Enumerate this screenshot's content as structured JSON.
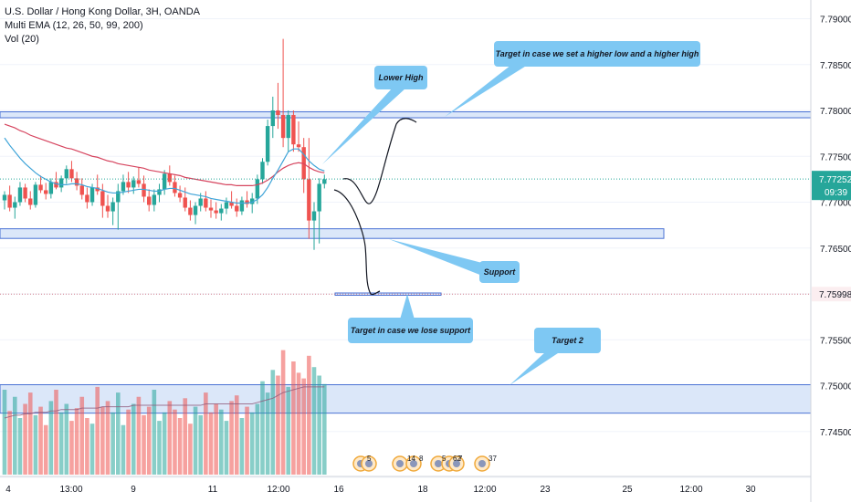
{
  "legend": {
    "title": "U.S. Dollar / Hong Kong Dollar, 3H, OANDA",
    "indicator": "Multi EMA (12, 26, 50, 99, 200)",
    "volume": "Vol (20)"
  },
  "price_axis": {
    "ticks": [
      "7.79000",
      "7.78500",
      "7.78000",
      "7.77500",
      "7.77000",
      "7.76500",
      "7.75998",
      "7.75500",
      "7.75000",
      "7.74500"
    ],
    "current_price": "7.77252",
    "countdown": "09:39",
    "marked_price": "7.75998"
  },
  "time_axis": {
    "ticks": [
      "4",
      "13:00",
      "9",
      "11",
      "12:00",
      "16",
      "18",
      "12:00",
      "23",
      "25",
      "12:00",
      "30"
    ]
  },
  "callouts": [
    "Lower High",
    "Target in case we set a higher low and a higher high",
    "Support",
    "Target in case we lose support",
    "Target 2"
  ],
  "event_badges": [
    "5",
    "14",
    "8",
    "5",
    "62",
    "7",
    "37"
  ],
  "colors": {
    "up": "#26a69a",
    "down": "#ef5350",
    "zone_fill": "#dbe7f9",
    "zone_line": "#4a72d4",
    "callout": "#7ec8f3",
    "ema_red": "#d6455f",
    "ema_blue": "#3fa4d8"
  },
  "chart_data": {
    "type": "candlestick",
    "symbol": "USD/HKD",
    "interval": "3H",
    "ylim": [
      7.7405,
      7.7925
    ],
    "candles": [
      [
        7.7702,
        7.7712,
        7.7692,
        7.7708
      ],
      [
        7.7708,
        7.7718,
        7.769,
        7.7694
      ],
      [
        7.7694,
        7.7706,
        7.7682,
        7.77
      ],
      [
        7.77,
        7.7722,
        7.7696,
        7.7716
      ],
      [
        7.7716,
        7.772,
        7.77,
        7.7704
      ],
      [
        7.7704,
        7.7712,
        7.7692,
        7.7697
      ],
      [
        7.7697,
        7.7722,
        7.7694,
        7.7719
      ],
      [
        7.7719,
        7.7729,
        7.771,
        7.7713
      ],
      [
        7.7713,
        7.7721,
        7.7703,
        7.7709
      ],
      [
        7.7709,
        7.7726,
        7.7704,
        7.7722
      ],
      [
        7.7722,
        7.7733,
        7.7714,
        7.7716
      ],
      [
        7.7716,
        7.7729,
        7.7711,
        7.7726
      ],
      [
        7.7726,
        7.774,
        7.772,
        7.7736
      ],
      [
        7.7736,
        7.7745,
        7.7722,
        7.7726
      ],
      [
        7.7726,
        7.7733,
        7.7713,
        7.7718
      ],
      [
        7.7718,
        7.7726,
        7.7703,
        7.7708
      ],
      [
        7.7708,
        7.7716,
        7.7693,
        7.77
      ],
      [
        7.77,
        7.772,
        7.7696,
        7.7716
      ],
      [
        7.7716,
        7.773,
        7.7708,
        7.7712
      ],
      [
        7.7712,
        7.772,
        7.7683,
        7.7696
      ],
      [
        7.7696,
        7.7708,
        7.7683,
        7.769
      ],
      [
        7.769,
        7.7705,
        7.7675,
        7.77
      ],
      [
        7.77,
        7.772,
        7.767,
        7.7712
      ],
      [
        7.7712,
        7.773,
        7.7708,
        7.7722
      ],
      [
        7.7722,
        7.7733,
        7.771,
        7.7716
      ],
      [
        7.7716,
        7.7728,
        7.7709,
        7.7724
      ],
      [
        7.7724,
        7.7738,
        7.7716,
        7.772
      ],
      [
        7.772,
        7.7729,
        7.77,
        7.7706
      ],
      [
        7.7706,
        7.7714,
        7.769,
        7.7697
      ],
      [
        7.7697,
        7.7714,
        7.769,
        7.7708
      ],
      [
        7.7708,
        7.772,
        7.77,
        7.7714
      ],
      [
        7.7714,
        7.7735,
        7.7708,
        7.7731
      ],
      [
        7.7731,
        7.774,
        7.7718,
        7.7722
      ],
      [
        7.7722,
        7.7729,
        7.7706,
        7.771
      ],
      [
        7.771,
        7.7718,
        7.77,
        7.7705
      ],
      [
        7.7705,
        7.7716,
        7.769,
        7.7694
      ],
      [
        7.7694,
        7.7702,
        7.768,
        7.7686
      ],
      [
        7.7686,
        7.77,
        7.7676,
        7.7696
      ],
      [
        7.7696,
        7.771,
        7.769,
        7.7704
      ],
      [
        7.7704,
        7.7712,
        7.769,
        7.7694
      ],
      [
        7.7694,
        7.7703,
        7.7683,
        7.7691
      ],
      [
        7.7691,
        7.77,
        7.7682,
        7.7688
      ],
      [
        7.7688,
        7.7698,
        7.768,
        7.7693
      ],
      [
        7.7693,
        7.7705,
        7.7687,
        7.77
      ],
      [
        7.77,
        7.7712,
        7.7693,
        7.7696
      ],
      [
        7.7696,
        7.7704,
        7.7684,
        7.769
      ],
      [
        7.769,
        7.7706,
        7.7686,
        7.7702
      ],
      [
        7.7702,
        7.7712,
        7.7694,
        7.7698
      ],
      [
        7.7698,
        7.771,
        7.7688,
        7.7704
      ],
      [
        7.7704,
        7.773,
        7.7698,
        7.7725
      ],
      [
        7.7725,
        7.7748,
        7.772,
        7.7744
      ],
      [
        7.7744,
        7.779,
        7.774,
        7.7783
      ],
      [
        7.7783,
        7.7815,
        7.777,
        7.78
      ],
      [
        7.78,
        7.783,
        7.778,
        7.7795
      ],
      [
        7.7795,
        7.7878,
        7.776,
        7.777
      ],
      [
        7.777,
        7.78,
        7.7755,
        7.7795
      ],
      [
        7.7795,
        7.78,
        7.7755,
        7.7763
      ],
      [
        7.7763,
        7.7788,
        7.7755,
        7.776
      ],
      [
        7.776,
        7.777,
        7.771,
        7.7725
      ],
      [
        7.7725,
        7.777,
        7.766,
        7.768
      ],
      [
        7.768,
        7.77,
        7.7648,
        7.769
      ],
      [
        7.769,
        7.7726,
        7.7655,
        7.772
      ],
      [
        7.772,
        7.773,
        7.7715,
        7.7725
      ]
    ],
    "ema": [
      {
        "name": "EMA red",
        "values": [
          7.7785,
          7.7783,
          7.7781,
          7.7778,
          7.7776,
          7.7773,
          7.7771,
          7.7769,
          7.7767,
          7.7765,
          7.7763,
          7.7761,
          7.7759,
          7.7758,
          7.7756,
          7.7754,
          7.7752,
          7.775,
          7.7749,
          7.7747,
          7.7745,
          7.7744,
          7.7742,
          7.7741,
          7.774,
          7.7739,
          7.7738,
          7.7737,
          7.7735,
          7.7734,
          7.7733,
          7.7732,
          7.7731,
          7.773,
          7.7729,
          7.7727,
          7.7726,
          7.7725,
          7.7724,
          7.7723,
          7.7722,
          7.7721,
          7.772,
          7.7719,
          7.7719,
          7.7718,
          7.7718,
          7.7718,
          7.7718,
          7.7719,
          7.7721,
          7.7724,
          7.7728,
          7.7733,
          7.7737,
          7.774,
          7.7742,
          7.7743,
          7.7742,
          7.7738,
          7.7735,
          7.7733,
          7.7732
        ]
      },
      {
        "name": "EMA blue",
        "values": [
          7.777,
          7.7762,
          7.7755,
          7.7748,
          7.7742,
          7.7737,
          7.7732,
          7.7728,
          7.7725,
          7.7722,
          7.772,
          7.7719,
          7.7719,
          7.772,
          7.772,
          7.7719,
          7.7717,
          7.7716,
          7.7715,
          7.7713,
          7.7711,
          7.771,
          7.771,
          7.7711,
          7.7712,
          7.7713,
          7.7714,
          7.7714,
          7.7713,
          7.7712,
          7.7712,
          7.7714,
          7.7715,
          7.7715,
          7.7713,
          7.7711,
          7.7709,
          7.7708,
          7.7707,
          7.7706,
          7.7704,
          7.7703,
          7.7702,
          7.7701,
          7.77,
          7.7699,
          7.7699,
          7.7699,
          7.77,
          7.7703,
          7.7708,
          7.7716,
          7.7726,
          7.7735,
          7.7745,
          7.7755,
          7.7758,
          7.7758,
          7.7752,
          7.7745,
          7.774,
          7.7736,
          7.7734
        ]
      }
    ],
    "volume": [
      60,
      45,
      55,
      40,
      50,
      58,
      42,
      48,
      35,
      52,
      60,
      44,
      50,
      38,
      47,
      55,
      40,
      36,
      62,
      48,
      52,
      44,
      58,
      35,
      46,
      50,
      55,
      42,
      48,
      60,
      38,
      44,
      52,
      46,
      40,
      54,
      36,
      48,
      42,
      58,
      44,
      50,
      46,
      38,
      52,
      56,
      40,
      48,
      44,
      50,
      66,
      58,
      74,
      70,
      88,
      62,
      80,
      72,
      68,
      84,
      76,
      70,
      64
    ],
    "volume_ma": [
      40,
      41,
      42,
      42,
      43,
      43,
      44,
      44,
      44,
      45,
      45,
      46,
      46,
      46,
      46,
      47,
      47,
      47,
      47,
      48,
      48,
      48,
      48,
      48,
      48,
      49,
      49,
      49,
      49,
      49,
      49,
      49,
      49,
      49,
      49,
      49,
      49,
      49,
      49,
      50,
      50,
      50,
      50,
      50,
      50,
      50,
      50,
      50,
      50,
      51,
      52,
      53,
      54,
      56,
      58,
      59,
      60,
      61,
      62,
      62,
      62,
      62,
      62
    ],
    "zones": [
      {
        "label": "resistance",
        "from": 7.7792,
        "to": 7.77985
      },
      {
        "label": "support",
        "from": 7.76605,
        "to": 7.7671
      },
      {
        "label": "target",
        "from": 7.75985,
        "to": 7.7601
      },
      {
        "label": "target 2",
        "from": 7.747,
        "to": 7.7501
      }
    ]
  }
}
